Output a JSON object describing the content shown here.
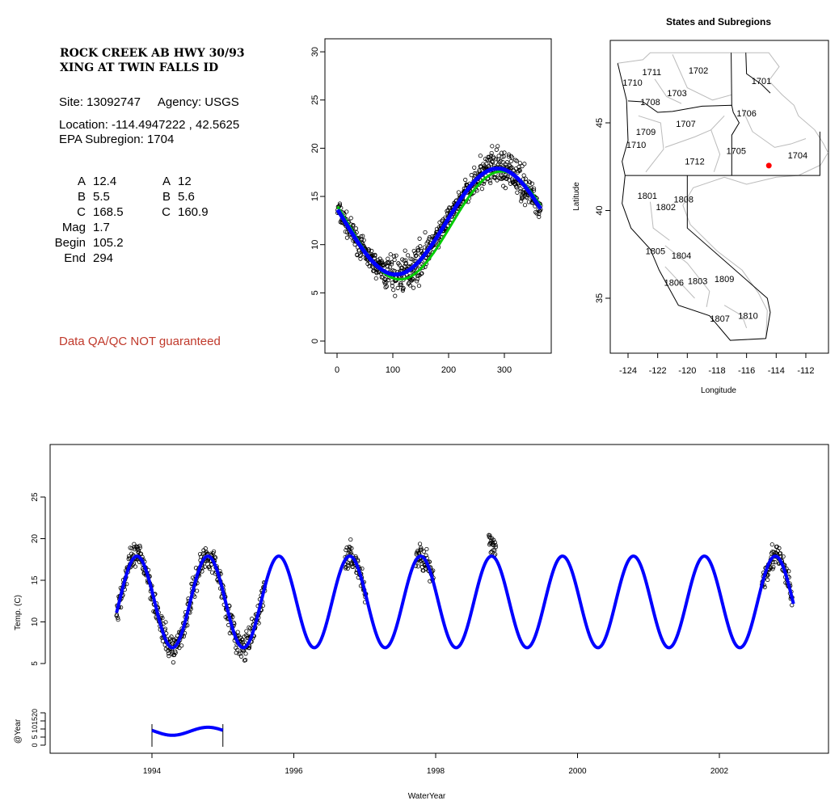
{
  "site": {
    "name_line1": "ROCK CREEK AB HWY 30/93",
    "name_line2": "XING AT TWIN FALLS ID",
    "site_label": "Site: 13092747",
    "agency_label": "Agency: USGS",
    "location_label": "Location: -114.4947222 , 42.5625",
    "subregion_label": "EPA Subregion: 1704",
    "qa_note": "Data QA/QC NOT guaranteed"
  },
  "params": {
    "left": [
      {
        "k": "A",
        "v": "12.4"
      },
      {
        "k": "B",
        "v": "5.5"
      },
      {
        "k": "C",
        "v": "168.5"
      },
      {
        "k": "Mag",
        "v": "1.7"
      },
      {
        "k": "Begin",
        "v": "105.2"
      },
      {
        "k": "End",
        "v": "294"
      }
    ],
    "right": [
      {
        "k": "A",
        "v": "12"
      },
      {
        "k": "B",
        "v": "5.6"
      },
      {
        "k": "C",
        "v": "160.9"
      }
    ]
  },
  "colors": {
    "fit_blue": "#0000ff",
    "fit_green": "#00cc00",
    "site_red": "#ff0000",
    "qa_red": "#c0392b"
  },
  "chart_data": [
    {
      "type": "scatter",
      "name": "day-of-year",
      "xlim": [
        0,
        365
      ],
      "ylim": [
        0,
        30
      ],
      "xticks": [
        "0",
        "100",
        "200",
        "300"
      ],
      "yticks": [
        "0",
        "5",
        "10",
        "15",
        "20",
        "25",
        "30"
      ],
      "series": [
        {
          "name": "fit-blue",
          "A": 12.4,
          "B": 5.5,
          "C": 168.5
        },
        {
          "name": "fit-green",
          "A": 12,
          "B": 5.6,
          "C": 160.9
        }
      ]
    },
    {
      "type": "scatter",
      "name": "map",
      "title": "States and Subregions",
      "xlabel": "Longitude",
      "ylabel": "Latitude",
      "xlim": [
        -125.2,
        -110.5
      ],
      "ylim": [
        32,
        49.2
      ],
      "xticks": [
        "-124",
        "-122",
        "-120",
        "-118",
        "-116",
        "-114",
        "-112"
      ],
      "yticks": [
        "35",
        "40",
        "45"
      ],
      "site": {
        "lon": -114.4947222,
        "lat": 42.5625
      },
      "labels": [
        [
          "1702",
          -119.25,
          48.0
        ],
        [
          "1701",
          -115.0,
          47.4
        ],
        [
          "1711",
          -122.4,
          47.9
        ],
        [
          "1710",
          -123.7,
          47.3
        ],
        [
          "1703",
          -120.7,
          46.7
        ],
        [
          "1708",
          -122.5,
          46.2
        ],
        [
          "1706",
          -116.0,
          45.55
        ],
        [
          "1707",
          -120.1,
          44.95
        ],
        [
          "1709",
          -122.8,
          44.5
        ],
        [
          "1710",
          -123.45,
          43.75
        ],
        [
          "1705",
          -116.7,
          43.4
        ],
        [
          "1704",
          -112.55,
          43.15
        ],
        [
          "1712",
          -119.5,
          42.8
        ],
        [
          "1801",
          -122.7,
          40.85
        ],
        [
          "1808",
          -120.25,
          40.65
        ],
        [
          "1802",
          -121.45,
          40.2
        ],
        [
          "1805",
          -122.15,
          37.7
        ],
        [
          "1804",
          -120.4,
          37.45
        ],
        [
          "1806",
          -120.9,
          35.9
        ],
        [
          "1803",
          -119.3,
          36.0
        ],
        [
          "1809",
          -117.5,
          36.1
        ],
        [
          "1807",
          -117.8,
          33.85
        ],
        [
          "1810",
          -115.9,
          34.0
        ]
      ]
    },
    {
      "type": "line",
      "name": "time-series",
      "xlabel": "WaterYear",
      "ylabel": "Temp. (C)",
      "xlim": [
        1992.6,
        2003.6
      ],
      "ylim": [
        0,
        30
      ],
      "xticks": [
        "1994",
        "1996",
        "1998",
        "2000",
        "2002"
      ],
      "yticks": [
        "5",
        "10",
        "15",
        "20",
        "25"
      ],
      "fit": {
        "A": 12.4,
        "B": 5.5,
        "C": 168.5,
        "from": 1993.5,
        "to": 2003.05
      },
      "data_periods": [
        [
          1993.5,
          1995.6
        ],
        [
          1996.72,
          1997.02
        ],
        [
          1997.72,
          1997.97
        ],
        [
          1998.75,
          1998.85
        ],
        [
          2002.6,
          2003.03
        ]
      ],
      "year_axis": {
        "label": "@Year",
        "ticks": [
          "0",
          "5",
          "10",
          "15",
          "20"
        ],
        "from": 1994,
        "to": 1995
      }
    }
  ]
}
